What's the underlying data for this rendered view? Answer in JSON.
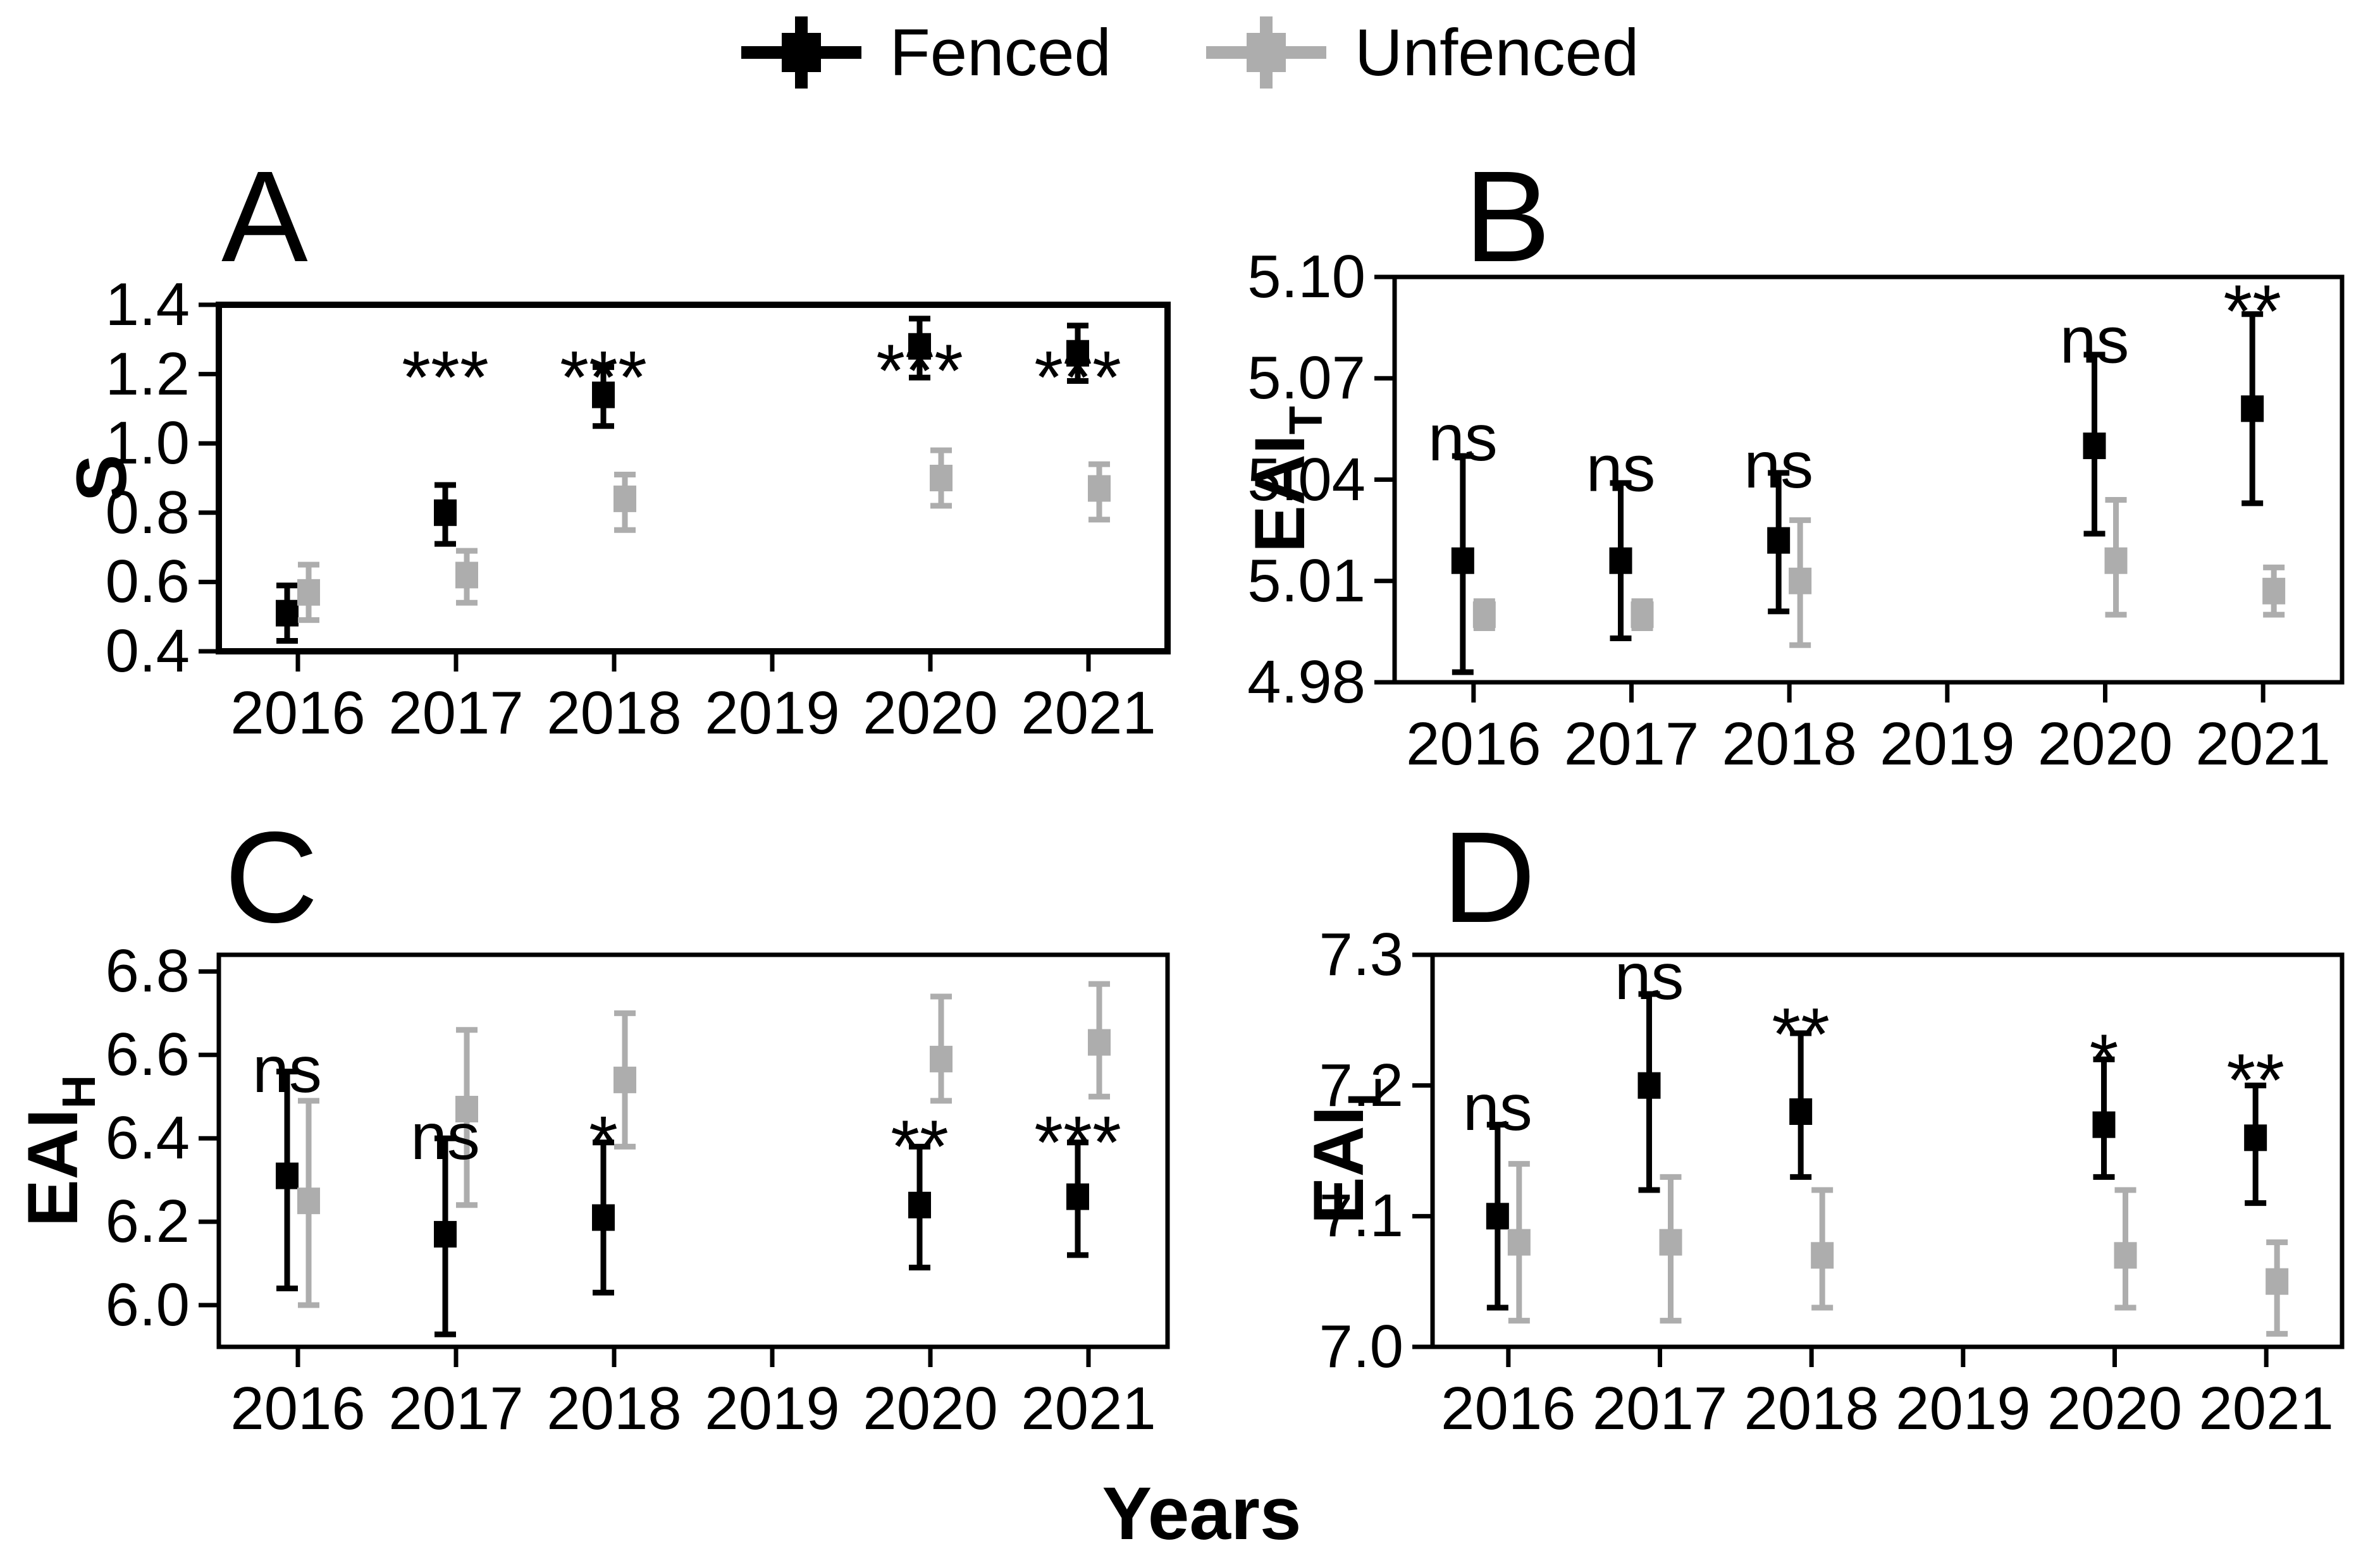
{
  "legend": {
    "items": [
      {
        "label": "Fenced",
        "color": "#000000",
        "icon": "pointrange-glyph"
      },
      {
        "label": "Unfenced",
        "color": "#adadad",
        "icon": "pointrange-glyph"
      }
    ]
  },
  "x_axis_title": "Years",
  "chart_data": [
    {
      "type": "scatter",
      "panel_label": "A",
      "ylabel_main": "S",
      "ylabel_sub": "",
      "ylim": [
        0.4,
        1.4
      ],
      "yticks": [
        {
          "v": 0.4,
          "label": "0.4"
        },
        {
          "v": 0.6,
          "label": "0.6"
        },
        {
          "v": 0.8,
          "label": "0.8"
        },
        {
          "v": 1.0,
          "label": "1.0"
        },
        {
          "v": 1.2,
          "label": "1.2"
        },
        {
          "v": 1.4,
          "label": "1.4"
        }
      ],
      "categories": [
        "2016",
        "2017",
        "2018",
        "2019",
        "2020",
        "2021"
      ],
      "series": [
        {
          "name": "Fenced",
          "color": "#000000",
          "points": [
            {
              "x": "2016",
              "y": 0.51,
              "lo": 0.43,
              "hi": 0.59
            },
            {
              "x": "2017",
              "y": 0.8,
              "lo": 0.71,
              "hi": 0.88
            },
            {
              "x": "2018",
              "y": 1.14,
              "lo": 1.05,
              "hi": 1.22
            },
            {
              "x": "2020",
              "y": 1.28,
              "lo": 1.19,
              "hi": 1.36
            },
            {
              "x": "2021",
              "y": 1.26,
              "lo": 1.18,
              "hi": 1.34
            }
          ]
        },
        {
          "name": "Unfenced",
          "color": "#adadad",
          "points": [
            {
              "x": "2016",
              "y": 0.57,
              "lo": 0.49,
              "hi": 0.65
            },
            {
              "x": "2017",
              "y": 0.62,
              "lo": 0.54,
              "hi": 0.69
            },
            {
              "x": "2018",
              "y": 0.84,
              "lo": 0.75,
              "hi": 0.91
            },
            {
              "x": "2020",
              "y": 0.9,
              "lo": 0.82,
              "hi": 0.98
            },
            {
              "x": "2021",
              "y": 0.87,
              "lo": 0.78,
              "hi": 0.94
            }
          ]
        }
      ],
      "significance": [
        {
          "x": "2017",
          "label": "***",
          "y": 1.25
        },
        {
          "x": "2018",
          "label": "***",
          "y": 1.25
        },
        {
          "x": "2020",
          "label": "***",
          "y": 1.27
        },
        {
          "x": "2021",
          "label": "***",
          "y": 1.25
        }
      ]
    },
    {
      "type": "scatter",
      "panel_label": "B",
      "ylabel_main": "EAI",
      "ylabel_sub": "T",
      "ylim": [
        4.98,
        5.1
      ],
      "yticks": [
        {
          "v": 4.98,
          "label": "4.98"
        },
        {
          "v": 5.01,
          "label": "5.01"
        },
        {
          "v": 5.04,
          "label": "5.04"
        },
        {
          "v": 5.07,
          "label": "5.07"
        },
        {
          "v": 5.1,
          "label": "5.10"
        }
      ],
      "categories": [
        "2016",
        "2017",
        "2018",
        "2019",
        "2020",
        "2021"
      ],
      "series": [
        {
          "name": "Fenced",
          "color": "#000000",
          "points": [
            {
              "x": "2016",
              "y": 5.016,
              "lo": 4.983,
              "hi": 5.047
            },
            {
              "x": "2017",
              "y": 5.016,
              "lo": 4.993,
              "hi": 5.039
            },
            {
              "x": "2018",
              "y": 5.022,
              "lo": 5.001,
              "hi": 5.042
            },
            {
              "x": "2020",
              "y": 5.05,
              "lo": 5.024,
              "hi": 5.077
            },
            {
              "x": "2021",
              "y": 5.061,
              "lo": 5.033,
              "hi": 5.089
            }
          ]
        },
        {
          "name": "Unfenced",
          "color": "#adadad",
          "points": [
            {
              "x": "2016",
              "y": 5.0,
              "lo": 4.996,
              "hi": 5.004
            },
            {
              "x": "2017",
              "y": 5.0,
              "lo": 4.996,
              "hi": 5.004
            },
            {
              "x": "2018",
              "y": 5.01,
              "lo": 4.991,
              "hi": 5.028
            },
            {
              "x": "2020",
              "y": 5.016,
              "lo": 5.0,
              "hi": 5.034
            },
            {
              "x": "2021",
              "y": 5.007,
              "lo": 5.0,
              "hi": 5.014
            }
          ]
        }
      ],
      "significance": [
        {
          "x": "2016",
          "label": "ns",
          "y": 5.053
        },
        {
          "x": "2017",
          "label": "ns",
          "y": 5.044
        },
        {
          "x": "2018",
          "label": "ns",
          "y": 5.045
        },
        {
          "x": "2020",
          "label": "ns",
          "y": 5.082
        },
        {
          "x": "2021",
          "label": "**",
          "y": 5.096
        }
      ]
    },
    {
      "type": "scatter",
      "panel_label": "C",
      "ylabel_main": "EAI",
      "ylabel_sub": "H",
      "ylim": [
        5.9,
        6.84
      ],
      "yticks": [
        {
          "v": 6.0,
          "label": "6.0"
        },
        {
          "v": 6.2,
          "label": "6.2"
        },
        {
          "v": 6.4,
          "label": "6.4"
        },
        {
          "v": 6.6,
          "label": "6.6"
        },
        {
          "v": 6.8,
          "label": "6.8"
        }
      ],
      "categories": [
        "2016",
        "2017",
        "2018",
        "2019",
        "2020",
        "2021"
      ],
      "series": [
        {
          "name": "Fenced",
          "color": "#000000",
          "points": [
            {
              "x": "2016",
              "y": 6.31,
              "lo": 6.04,
              "hi": 6.56
            },
            {
              "x": "2017",
              "y": 6.17,
              "lo": 5.93,
              "hi": 6.4
            },
            {
              "x": "2018",
              "y": 6.21,
              "lo": 6.03,
              "hi": 6.39
            },
            {
              "x": "2020",
              "y": 6.24,
              "lo": 6.09,
              "hi": 6.38
            },
            {
              "x": "2021",
              "y": 6.26,
              "lo": 6.12,
              "hi": 6.39
            }
          ]
        },
        {
          "name": "Unfenced",
          "color": "#adadad",
          "points": [
            {
              "x": "2016",
              "y": 6.25,
              "lo": 6.0,
              "hi": 6.49
            },
            {
              "x": "2017",
              "y": 6.47,
              "lo": 6.24,
              "hi": 6.66
            },
            {
              "x": "2018",
              "y": 6.54,
              "lo": 6.38,
              "hi": 6.7
            },
            {
              "x": "2020",
              "y": 6.59,
              "lo": 6.49,
              "hi": 6.74
            },
            {
              "x": "2021",
              "y": 6.63,
              "lo": 6.5,
              "hi": 6.77
            }
          ]
        }
      ],
      "significance": [
        {
          "x": "2016",
          "label": "ns",
          "y": 6.57
        },
        {
          "x": "2017",
          "label": "ns",
          "y": 6.41
        },
        {
          "x": "2018",
          "label": "*",
          "y": 6.44
        },
        {
          "x": "2020",
          "label": "**",
          "y": 6.43
        },
        {
          "x": "2021",
          "label": "***",
          "y": 6.44
        }
      ]
    },
    {
      "type": "scatter",
      "panel_label": "D",
      "ylabel_main": "EAI",
      "ylabel_sub": "L",
      "ylim": [
        7.0,
        7.3
      ],
      "yticks": [
        {
          "v": 7.0,
          "label": "7.0"
        },
        {
          "v": 7.1,
          "label": "7.1"
        },
        {
          "v": 7.2,
          "label": "7.2"
        },
        {
          "v": 7.3,
          "label": "7.3"
        }
      ],
      "categories": [
        "2016",
        "2017",
        "2018",
        "2019",
        "2020",
        "2021"
      ],
      "series": [
        {
          "name": "Fenced",
          "color": "#000000",
          "points": [
            {
              "x": "2016",
              "y": 7.1,
              "lo": 7.03,
              "hi": 7.17
            },
            {
              "x": "2017",
              "y": 7.2,
              "lo": 7.12,
              "hi": 7.27
            },
            {
              "x": "2018",
              "y": 7.18,
              "lo": 7.13,
              "hi": 7.24
            },
            {
              "x": "2020",
              "y": 7.17,
              "lo": 7.13,
              "hi": 7.22
            },
            {
              "x": "2021",
              "y": 7.16,
              "lo": 7.11,
              "hi": 7.2
            }
          ]
        },
        {
          "name": "Unfenced",
          "color": "#adadad",
          "points": [
            {
              "x": "2016",
              "y": 7.08,
              "lo": 7.02,
              "hi": 7.14
            },
            {
              "x": "2017",
              "y": 7.08,
              "lo": 7.02,
              "hi": 7.13
            },
            {
              "x": "2018",
              "y": 7.07,
              "lo": 7.03,
              "hi": 7.12
            },
            {
              "x": "2020",
              "y": 7.07,
              "lo": 7.03,
              "hi": 7.12
            },
            {
              "x": "2021",
              "y": 7.05,
              "lo": 7.01,
              "hi": 7.08
            }
          ]
        }
      ],
      "significance": [
        {
          "x": "2016",
          "label": "ns",
          "y": 7.185
        },
        {
          "x": "2017",
          "label": "ns",
          "y": 7.285
        },
        {
          "x": "2018",
          "label": "**",
          "y": 7.255
        },
        {
          "x": "2020",
          "label": "*",
          "y": 7.235
        },
        {
          "x": "2021",
          "label": "**",
          "y": 7.22
        }
      ]
    }
  ]
}
